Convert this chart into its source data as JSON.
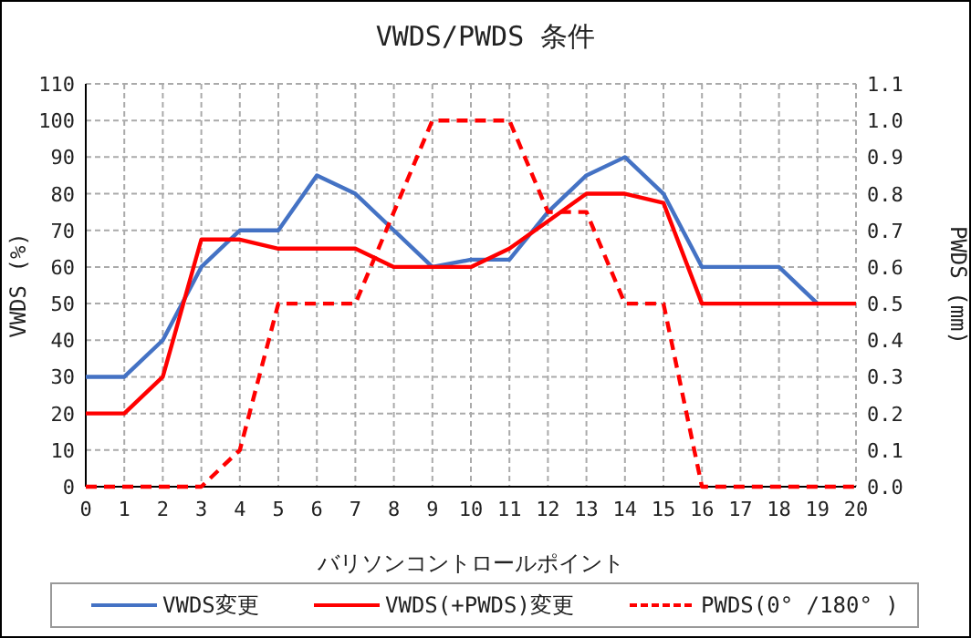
{
  "chart_data": {
    "type": "line",
    "title": "VWDS/PWDS 条件",
    "xlabel": "バリソンコントロールポイント",
    "ylabel": "VWDS (%)",
    "y2label": "PWDS (mm)",
    "x": [
      0,
      1,
      2,
      3,
      4,
      5,
      6,
      7,
      8,
      9,
      10,
      11,
      12,
      13,
      14,
      15,
      16,
      17,
      18,
      19,
      20
    ],
    "xlim": [
      0,
      20
    ],
    "xticks": [
      0,
      1,
      2,
      3,
      4,
      5,
      6,
      7,
      8,
      9,
      10,
      11,
      12,
      13,
      14,
      15,
      16,
      17,
      18,
      19,
      20
    ],
    "ylim": [
      0,
      110
    ],
    "yticks": [
      0,
      10,
      20,
      30,
      40,
      50,
      60,
      70,
      80,
      90,
      100,
      110
    ],
    "y2lim": [
      0,
      1.1
    ],
    "y2ticks": [
      {
        "value": 0,
        "label": "0.0"
      },
      {
        "value": 0.1,
        "label": "0.1"
      },
      {
        "value": 0.2,
        "label": "0.2"
      },
      {
        "value": 0.3,
        "label": "0.3"
      },
      {
        "value": 0.4,
        "label": "0.4"
      },
      {
        "value": 0.5,
        "label": "0.5"
      },
      {
        "value": 0.6,
        "label": "0.6"
      },
      {
        "value": 0.7,
        "label": "0.7"
      },
      {
        "value": 0.8,
        "label": "0.8"
      },
      {
        "value": 0.9,
        "label": "0.9"
      },
      {
        "value": 1.0,
        "label": "1.0"
      },
      {
        "value": 1.1,
        "label": "1.1"
      }
    ],
    "grid": true,
    "legend": "bottom",
    "marker": "none",
    "series": [
      {
        "name": "VWDS変更",
        "color": "#4472c4",
        "line_style": "solid",
        "values": [
          30,
          30,
          40,
          60,
          70,
          70,
          85,
          80,
          70,
          60,
          62,
          62,
          75,
          85,
          90,
          80,
          60,
          60,
          60,
          50,
          null
        ]
      },
      {
        "name": "VWDS(+PWDS)変更",
        "color": "#ff0000",
        "line_style": "solid",
        "values": [
          20,
          20,
          30,
          67.5,
          67.5,
          65,
          65,
          65,
          60,
          60,
          60,
          65,
          72.5,
          80,
          80,
          77.5,
          50,
          50,
          50,
          50,
          50
        ]
      },
      {
        "name": "PWDS(0° /180° )",
        "color": "#ff0000",
        "line_style": "dashed",
        "axis": "y2",
        "values": [
          0,
          0,
          0,
          0,
          0.1,
          0.5,
          0.5,
          0.5,
          0.75,
          1.0,
          1.0,
          1.0,
          0.75,
          0.75,
          0.5,
          0.5,
          0,
          0,
          0,
          0,
          0
        ]
      }
    ]
  }
}
